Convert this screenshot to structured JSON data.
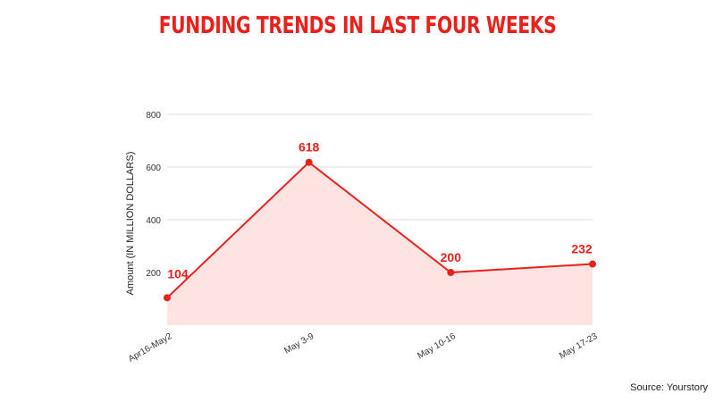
{
  "chart_data": {
    "type": "line",
    "title": "FUNDING TRENDS IN LAST FOUR WEEKS",
    "xlabel": "",
    "ylabel": "Amount (IN MILLION DOLLARS)",
    "categories": [
      "Apr16-May2",
      "May 3-9",
      "May 10-16",
      "May 17-23"
    ],
    "series": [
      {
        "values": [
          104,
          618,
          200,
          232
        ]
      }
    ],
    "yticks": [
      200,
      400,
      600,
      800
    ],
    "ylim": [
      0,
      800
    ],
    "grid": true,
    "data_labels": [
      "104",
      "618",
      "200",
      "232"
    ],
    "source": "Source: Yourstory"
  },
  "colors": {
    "title": "#e8211c",
    "line": "#e8211c",
    "fill": "#fde4e3",
    "grid": "#dddddd"
  }
}
